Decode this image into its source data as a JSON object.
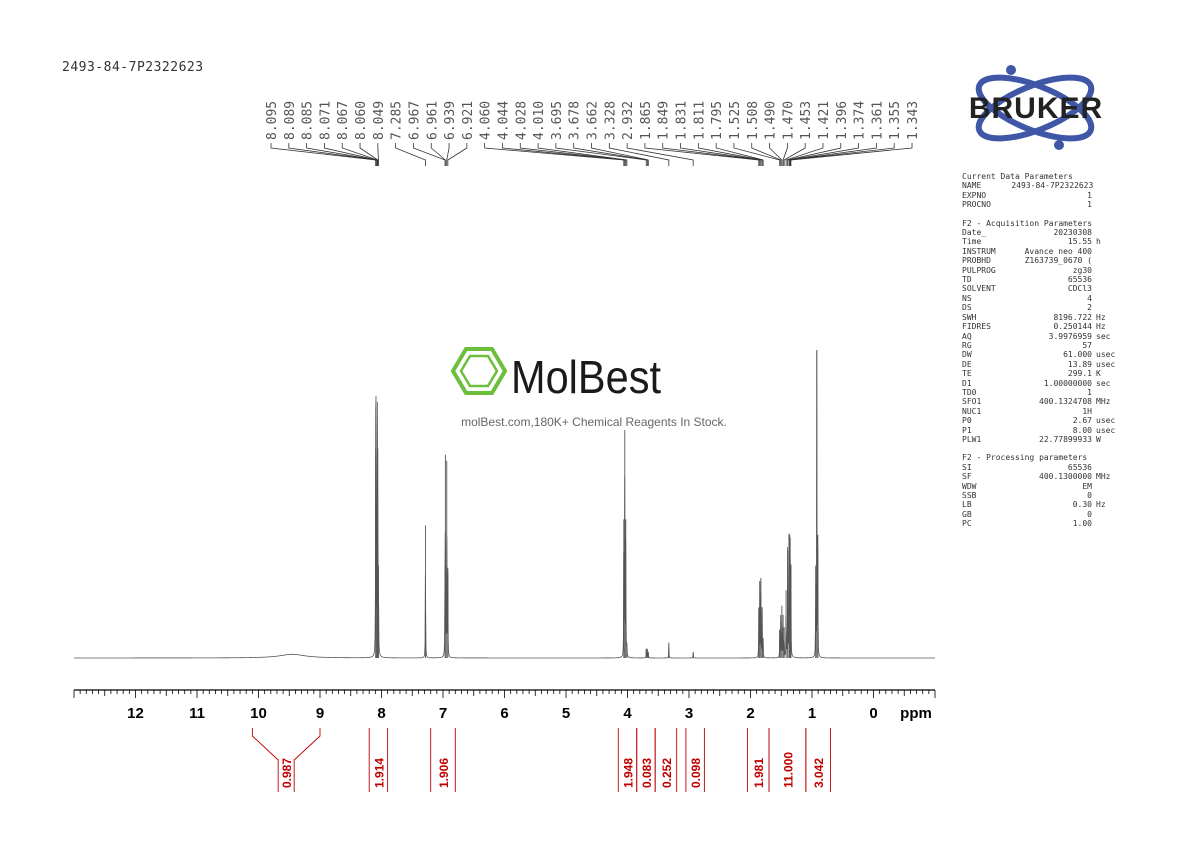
{
  "sample_id": "2493-84-7P2322623",
  "watermark": {
    "brand": "MolBest",
    "tagline": "molBest.com,180K+ Chemical Reagents In Stock."
  },
  "logo": {
    "text": "BRUKER"
  },
  "parameters": {
    "current": {
      "title": "Current Data Parameters",
      "rows": [
        {
          "key": "NAME",
          "value": "2493-84-7P2322623",
          "unit": ""
        },
        {
          "key": "EXPNO",
          "value": "1",
          "unit": ""
        },
        {
          "key": "PROCNO",
          "value": "1",
          "unit": ""
        }
      ]
    },
    "acquisition": {
      "title": "F2 - Acquisition Parameters",
      "rows": [
        {
          "key": "Date_",
          "value": "20230308",
          "unit": ""
        },
        {
          "key": "Time",
          "value": "15.55",
          "unit": "h"
        },
        {
          "key": "INSTRUM",
          "value": "Avance neo 400",
          "unit": ""
        },
        {
          "key": "PROBHD",
          "value": "Z163739_0670 (",
          "unit": ""
        },
        {
          "key": "PULPROG",
          "value": "zg30",
          "unit": ""
        },
        {
          "key": "TD",
          "value": "65536",
          "unit": ""
        },
        {
          "key": "SOLVENT",
          "value": "CDCl3",
          "unit": ""
        },
        {
          "key": "NS",
          "value": "4",
          "unit": ""
        },
        {
          "key": "DS",
          "value": "2",
          "unit": ""
        },
        {
          "key": "SWH",
          "value": "8196.722",
          "unit": "Hz"
        },
        {
          "key": "FIDRES",
          "value": "0.250144",
          "unit": "Hz"
        },
        {
          "key": "AQ",
          "value": "3.9976959",
          "unit": "sec"
        },
        {
          "key": "RG",
          "value": "57",
          "unit": ""
        },
        {
          "key": "DW",
          "value": "61.000",
          "unit": "usec"
        },
        {
          "key": "DE",
          "value": "13.89",
          "unit": "usec"
        },
        {
          "key": "TE",
          "value": "299.1",
          "unit": "K"
        },
        {
          "key": "D1",
          "value": "1.00000000",
          "unit": "sec"
        },
        {
          "key": "TD0",
          "value": "1",
          "unit": ""
        },
        {
          "key": "SFO1",
          "value": "400.1324708",
          "unit": "MHz"
        },
        {
          "key": "NUC1",
          "value": "1H",
          "unit": ""
        },
        {
          "key": "P0",
          "value": "2.67",
          "unit": "usec"
        },
        {
          "key": "P1",
          "value": "8.00",
          "unit": "usec"
        },
        {
          "key": "PLW1",
          "value": "22.77899933",
          "unit": "W"
        }
      ]
    },
    "processing": {
      "title": "F2 - Processing parameters",
      "rows": [
        {
          "key": "SI",
          "value": "65536",
          "unit": ""
        },
        {
          "key": "SF",
          "value": "400.1300000",
          "unit": "MHz"
        },
        {
          "key": "WDW",
          "value": "EM",
          "unit": ""
        },
        {
          "key": "SSB",
          "value": "0",
          "unit": ""
        },
        {
          "key": "LB",
          "value": "0.30",
          "unit": "Hz"
        },
        {
          "key": "GB",
          "value": "0",
          "unit": ""
        },
        {
          "key": "PC",
          "value": "1.00",
          "unit": ""
        }
      ]
    }
  },
  "chart_data": {
    "type": "line",
    "title": "",
    "xlabel": "ppm",
    "ylabel": "",
    "x_reversed": true,
    "xlim": [
      13.0,
      -1.0
    ],
    "ylim": [
      0,
      1
    ],
    "grid": false,
    "x_ticks": [
      12,
      11,
      10,
      9,
      8,
      7,
      6,
      5,
      4,
      3,
      2,
      1,
      0
    ],
    "axis_color": "#000000",
    "spectrum_color": "#555555",
    "label_color": "#555555",
    "integral_color": "#c00000",
    "peaks": [
      {
        "ppm": 8.095,
        "height": 0.68
      },
      {
        "ppm": 8.089,
        "height": 0.65
      },
      {
        "ppm": 8.085,
        "height": 0.3
      },
      {
        "ppm": 8.071,
        "height": 0.35
      },
      {
        "ppm": 8.067,
        "height": 0.66
      },
      {
        "ppm": 8.06,
        "height": 0.68
      },
      {
        "ppm": 8.049,
        "height": 0.3
      },
      {
        "ppm": 7.285,
        "height": 0.43
      },
      {
        "ppm": 6.967,
        "height": 0.3
      },
      {
        "ppm": 6.961,
        "height": 0.66
      },
      {
        "ppm": 6.939,
        "height": 0.64
      },
      {
        "ppm": 6.921,
        "height": 0.28
      },
      {
        "ppm": 4.06,
        "height": 0.45
      },
      {
        "ppm": 4.044,
        "height": 0.74
      },
      {
        "ppm": 4.028,
        "height": 0.45
      },
      {
        "ppm": 4.01,
        "height": 0.05
      },
      {
        "ppm": 3.695,
        "height": 0.03
      },
      {
        "ppm": 3.678,
        "height": 0.03
      },
      {
        "ppm": 3.662,
        "height": 0.02
      },
      {
        "ppm": 3.328,
        "height": 0.05
      },
      {
        "ppm": 2.932,
        "height": 0.02
      },
      {
        "ppm": 1.865,
        "height": 0.16
      },
      {
        "ppm": 1.849,
        "height": 0.25
      },
      {
        "ppm": 1.831,
        "height": 0.26
      },
      {
        "ppm": 1.811,
        "height": 0.16
      },
      {
        "ppm": 1.795,
        "height": 0.06
      },
      {
        "ppm": 1.525,
        "height": 0.09
      },
      {
        "ppm": 1.508,
        "height": 0.14
      },
      {
        "ppm": 1.49,
        "height": 0.17
      },
      {
        "ppm": 1.47,
        "height": 0.14
      },
      {
        "ppm": 1.453,
        "height": 0.1
      },
      {
        "ppm": 1.421,
        "height": 0.22
      },
      {
        "ppm": 1.396,
        "height": 0.35
      },
      {
        "ppm": 1.374,
        "height": 0.4
      },
      {
        "ppm": 1.361,
        "height": 0.4
      },
      {
        "ppm": 1.355,
        "height": 0.39
      },
      {
        "ppm": 1.343,
        "height": 0.3
      },
      {
        "ppm": 0.94,
        "height": 0.3
      },
      {
        "ppm": 0.922,
        "height": 1.0
      },
      {
        "ppm": 0.905,
        "height": 0.4
      }
    ],
    "broad_features": [
      {
        "ppm": 9.45,
        "height": 0.012
      }
    ],
    "peak_labels": [
      "8.095",
      "8.089",
      "8.085",
      "8.071",
      "8.067",
      "8.060",
      "8.049",
      "7.285",
      "6.967",
      "6.961",
      "6.939",
      "6.921",
      "4.060",
      "4.044",
      "4.028",
      "4.010",
      "3.695",
      "3.678",
      "3.662",
      "3.328",
      "2.932",
      "1.865",
      "1.849",
      "1.831",
      "1.811",
      "1.795",
      "1.525",
      "1.508",
      "1.490",
      "1.470",
      "1.453",
      "1.421",
      "1.396",
      "1.374",
      "1.361",
      "1.355",
      "1.343"
    ],
    "integrals": [
      {
        "from": 10.1,
        "to": 9.0,
        "value": "0.987"
      },
      {
        "from": 8.2,
        "to": 7.9,
        "value": "1.914"
      },
      {
        "from": 7.2,
        "to": 6.8,
        "value": "1.906"
      },
      {
        "from": 4.15,
        "to": 3.85,
        "value": "1.948"
      },
      {
        "from": 3.85,
        "to": 3.55,
        "value": "0.083"
      },
      {
        "from": 3.55,
        "to": 3.2,
        "value": "0.252"
      },
      {
        "from": 3.05,
        "to": 2.75,
        "value": "0.098"
      },
      {
        "from": 2.05,
        "to": 1.7,
        "value": "1.981"
      },
      {
        "from": 1.7,
        "to": 1.1,
        "value": "11.000"
      },
      {
        "from": 1.1,
        "to": 0.7,
        "value": "3.042"
      }
    ]
  }
}
